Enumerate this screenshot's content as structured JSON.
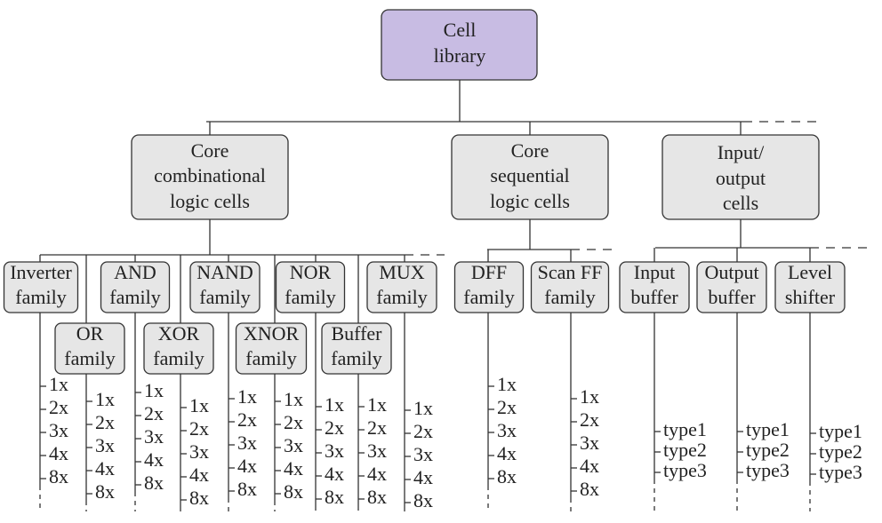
{
  "root": {
    "lines": [
      "Cell",
      "library"
    ]
  },
  "groups": [
    {
      "lines": [
        "Core",
        "combinational",
        "logic cells"
      ],
      "families": [
        {
          "lines": [
            "Inverter",
            "family"
          ],
          "items": [
            "1x",
            "2x",
            "3x",
            "4x",
            "8x"
          ]
        },
        {
          "lines": [
            "OR",
            "family"
          ],
          "items": [
            "1x",
            "2x",
            "3x",
            "4x",
            "8x"
          ]
        },
        {
          "lines": [
            "AND",
            "family"
          ],
          "items": [
            "1x",
            "2x",
            "3x",
            "4x",
            "8x"
          ]
        },
        {
          "lines": [
            "XOR",
            "family"
          ],
          "items": [
            "1x",
            "2x",
            "3x",
            "4x",
            "8x"
          ]
        },
        {
          "lines": [
            "NAND",
            "family"
          ],
          "items": [
            "1x",
            "2x",
            "3x",
            "4x",
            "8x"
          ]
        },
        {
          "lines": [
            "XNOR",
            "family"
          ],
          "items": [
            "1x",
            "2x",
            "3x",
            "4x",
            "8x"
          ]
        },
        {
          "lines": [
            "NOR",
            "family"
          ],
          "items": [
            "1x",
            "2x",
            "3x",
            "4x",
            "8x"
          ]
        },
        {
          "lines": [
            "Buffer",
            "family"
          ],
          "items": [
            "1x",
            "2x",
            "3x",
            "4x",
            "8x"
          ]
        },
        {
          "lines": [
            "MUX",
            "family"
          ],
          "items": [
            "1x",
            "2x",
            "3x",
            "4x",
            "8x"
          ]
        }
      ]
    },
    {
      "lines": [
        "Core",
        "sequential",
        "logic cells"
      ],
      "families": [
        {
          "lines": [
            "DFF",
            "family"
          ],
          "items": [
            "1x",
            "2x",
            "3x",
            "4x",
            "8x"
          ]
        },
        {
          "lines": [
            "Scan FF",
            "family"
          ],
          "items": [
            "1x",
            "2x",
            "3x",
            "4x",
            "8x"
          ]
        }
      ]
    },
    {
      "lines": [
        "Input/",
        "output",
        "cells"
      ],
      "families": [
        {
          "lines": [
            "Input",
            "buffer"
          ],
          "items": [
            "type1",
            "type2",
            "type3"
          ]
        },
        {
          "lines": [
            "Output",
            "buffer"
          ],
          "items": [
            "type1",
            "type2",
            "type3"
          ]
        },
        {
          "lines": [
            "Level",
            "shifter"
          ],
          "items": [
            "type1",
            "type2",
            "type3"
          ]
        }
      ]
    }
  ]
}
